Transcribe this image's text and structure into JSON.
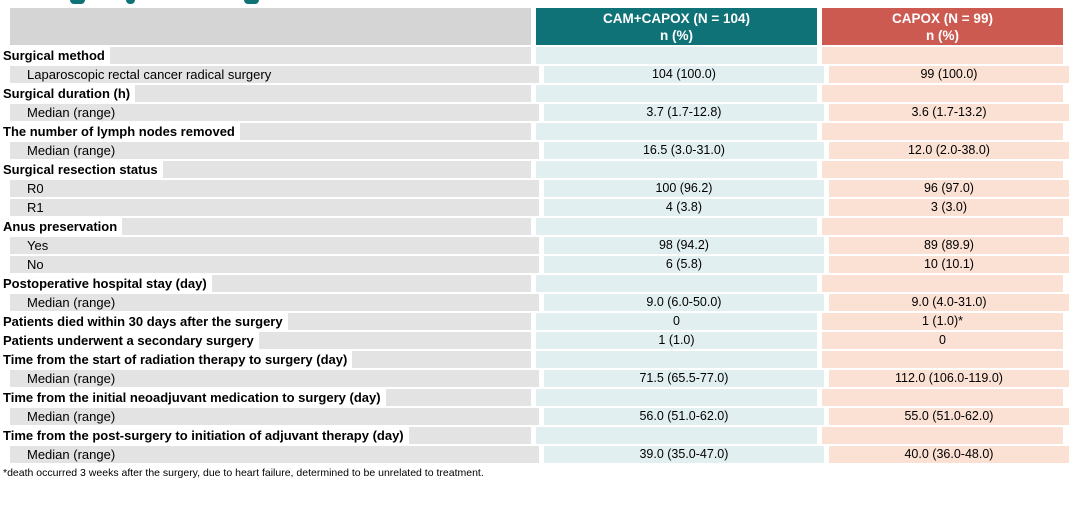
{
  "colors": {
    "header_teal": "#0E7276",
    "header_red": "#CD5A50",
    "tint_teal": "#E2EFF0",
    "tint_peach": "#FBE1D4",
    "row_label_gray": "#E3E3E3",
    "header_label_gray": "#D5D5D5"
  },
  "table": {
    "columns": [
      {
        "label": "CAM+CAPOX (N = 104)",
        "sublabel": "n (%)"
      },
      {
        "label": "CAPOX (N = 99)",
        "sublabel": "n (%)"
      }
    ],
    "rows": [
      {
        "label": "Surgical method",
        "bold": true,
        "values": [
          "",
          ""
        ]
      },
      {
        "label": "Laparoscopic rectal cancer radical surgery",
        "bold": false,
        "values": [
          "104 (100.0)",
          "99 (100.0)"
        ]
      },
      {
        "label": "Surgical duration (h)",
        "bold": true,
        "values": [
          "",
          ""
        ]
      },
      {
        "label": "Median (range)",
        "bold": false,
        "values": [
          "3.7 (1.7-12.8)",
          "3.6 (1.7-13.2)"
        ]
      },
      {
        "label": "The number of lymph nodes removed",
        "bold": true,
        "values": [
          "",
          ""
        ]
      },
      {
        "label": "Median (range)",
        "bold": false,
        "values": [
          "16.5 (3.0-31.0)",
          "12.0 (2.0-38.0)"
        ]
      },
      {
        "label": "Surgical resection status",
        "bold": true,
        "values": [
          "",
          ""
        ]
      },
      {
        "label": "R0",
        "bold": false,
        "values": [
          "100 (96.2)",
          "96 (97.0)"
        ]
      },
      {
        "label": "R1",
        "bold": false,
        "values": [
          "4 (3.8)",
          "3 (3.0)"
        ]
      },
      {
        "label": "Anus preservation",
        "bold": true,
        "values": [
          "",
          ""
        ]
      },
      {
        "label": "Yes",
        "bold": false,
        "values": [
          "98 (94.2)",
          "89 (89.9)"
        ]
      },
      {
        "label": "No",
        "bold": false,
        "values": [
          "6 (5.8)",
          "10 (10.1)"
        ]
      },
      {
        "label": "Postoperative hospital stay (day)",
        "bold": true,
        "values": [
          "",
          ""
        ]
      },
      {
        "label": "Median (range)",
        "bold": false,
        "values": [
          "9.0 (6.0-50.0)",
          "9.0 (4.0-31.0)"
        ]
      },
      {
        "label": "Patients died within 30 days after the surgery",
        "bold": true,
        "values": [
          "0",
          "1 (1.0)*"
        ]
      },
      {
        "label": "Patients underwent a secondary surgery",
        "bold": true,
        "values": [
          "1 (1.0)",
          "0"
        ]
      },
      {
        "label": "Time from the start of radiation therapy to surgery (day)",
        "bold": true,
        "values": [
          "",
          ""
        ]
      },
      {
        "label": "Median (range)",
        "bold": false,
        "values": [
          "71.5 (65.5-77.0)",
          "112.0 (106.0-119.0)"
        ]
      },
      {
        "label": "Time from the initial neoadjuvant medication to surgery (day)",
        "bold": true,
        "values": [
          "",
          ""
        ]
      },
      {
        "label": "Median (range)",
        "bold": false,
        "values": [
          "56.0 (51.0-62.0)",
          "55.0 (51.0-62.0)"
        ]
      },
      {
        "label": "Time from the post-surgery to initiation of adjuvant therapy (day)",
        "bold": true,
        "values": [
          "",
          ""
        ]
      },
      {
        "label": "Median (range)",
        "bold": false,
        "values": [
          "39.0 (35.0-47.0)",
          "40.0 (36.0-48.0)"
        ]
      }
    ],
    "footnote": "*death occurred 3 weeks after the surgery, due to heart failure, determined to be unrelated to treatment."
  }
}
